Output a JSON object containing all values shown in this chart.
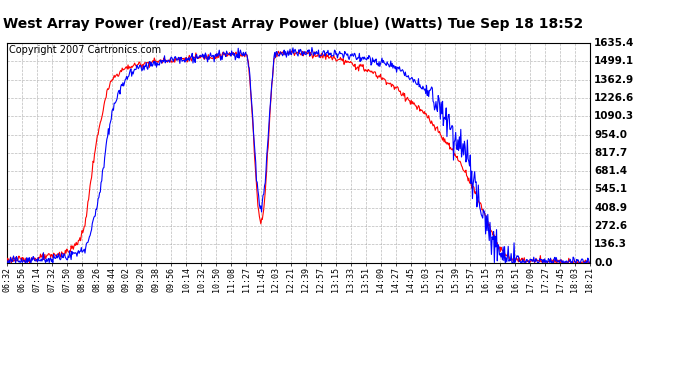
{
  "title": "West Array Power (red)/East Array Power (blue) (Watts) Tue Sep 18 18:52",
  "copyright": "Copyright 2007 Cartronics.com",
  "yticks": [
    0.0,
    136.3,
    272.6,
    408.9,
    545.1,
    681.4,
    817.7,
    954.0,
    1090.3,
    1226.6,
    1362.9,
    1499.1,
    1635.4
  ],
  "ylim": [
    0,
    1635.4
  ],
  "xtick_labels": [
    "06:32",
    "06:56",
    "07:14",
    "07:32",
    "07:50",
    "08:08",
    "08:26",
    "08:44",
    "09:02",
    "09:20",
    "09:38",
    "09:56",
    "10:14",
    "10:32",
    "10:50",
    "11:08",
    "11:27",
    "11:45",
    "12:03",
    "12:21",
    "12:39",
    "12:57",
    "13:15",
    "13:33",
    "13:51",
    "14:09",
    "14:27",
    "14:45",
    "15:03",
    "15:21",
    "15:39",
    "15:57",
    "16:15",
    "16:33",
    "16:51",
    "17:09",
    "17:27",
    "17:45",
    "18:03",
    "18:21"
  ],
  "background_color": "#ffffff",
  "grid_color": "#aaaaaa",
  "red_color": "#ff0000",
  "blue_color": "#0000ff",
  "title_fontsize": 10,
  "copyright_fontsize": 7
}
